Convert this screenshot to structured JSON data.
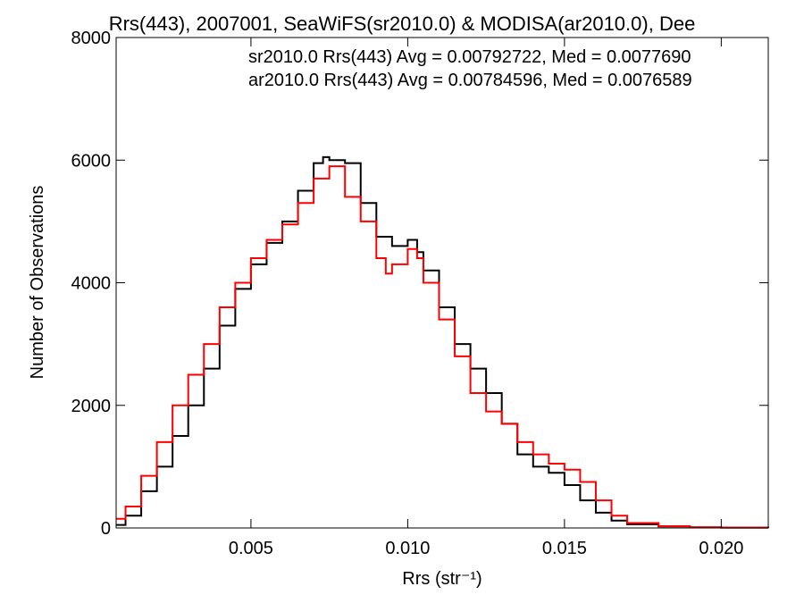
{
  "chart_data": {
    "type": "line",
    "title": "Rrs(443), 2007001, SeaWiFS(sr2010.0) & MODISA(ar2010.0), Dee",
    "xlabel": "Rrs (str⁻¹)",
    "ylabel": "Number of Observations",
    "xlim": [
      0.0007,
      0.0215
    ],
    "ylim": [
      0,
      8000
    ],
    "x_ticks": [
      0.005,
      0.01,
      0.015,
      0.02
    ],
    "x_tick_labels": [
      "0.005",
      "0.010",
      "0.015",
      "0.020"
    ],
    "y_ticks": [
      0,
      2000,
      4000,
      6000,
      8000
    ],
    "y_tick_labels": [
      "0",
      "2000",
      "4000",
      "6000",
      "8000"
    ],
    "grid": false,
    "legend_position": "top-right",
    "series": [
      {
        "name": "sr2010.0",
        "color": "#000000",
        "annotation": "sr2010.0 Rrs(443) Avg = 0.00792722, Med = 0.0077690",
        "x": [
          0.0007,
          0.001,
          0.0015,
          0.002,
          0.0025,
          0.003,
          0.0035,
          0.004,
          0.0045,
          0.005,
          0.0055,
          0.006,
          0.0065,
          0.007,
          0.0073,
          0.0075,
          0.008,
          0.0085,
          0.009,
          0.0095,
          0.01,
          0.0103,
          0.0105,
          0.011,
          0.0115,
          0.012,
          0.0125,
          0.013,
          0.0135,
          0.014,
          0.0145,
          0.015,
          0.0155,
          0.016,
          0.0165,
          0.017,
          0.018,
          0.019,
          0.02,
          0.0215
        ],
        "y": [
          50,
          200,
          600,
          1000,
          1500,
          2000,
          2600,
          3300,
          3900,
          4300,
          4650,
          5000,
          5500,
          5950,
          6050,
          6000,
          5950,
          5300,
          4750,
          4600,
          4700,
          4500,
          4200,
          3600,
          3000,
          2600,
          2200,
          1700,
          1200,
          1000,
          900,
          700,
          450,
          250,
          120,
          60,
          25,
          10,
          5,
          0
        ]
      },
      {
        "name": "ar2010.0",
        "color": "#ff0000",
        "annotation": "ar2010.0 Rrs(443) Avg = 0.00784596, Med = 0.0076589",
        "x": [
          0.0007,
          0.001,
          0.0015,
          0.002,
          0.0025,
          0.003,
          0.0035,
          0.004,
          0.0045,
          0.005,
          0.0055,
          0.006,
          0.0065,
          0.007,
          0.0075,
          0.008,
          0.0085,
          0.009,
          0.0093,
          0.0095,
          0.01,
          0.0103,
          0.0105,
          0.011,
          0.0115,
          0.012,
          0.0125,
          0.013,
          0.0135,
          0.014,
          0.0145,
          0.015,
          0.0155,
          0.016,
          0.0165,
          0.017,
          0.018,
          0.019,
          0.02,
          0.0215
        ],
        "y": [
          150,
          350,
          850,
          1400,
          2000,
          2500,
          3000,
          3600,
          4000,
          4400,
          4700,
          4950,
          5300,
          5700,
          5900,
          5400,
          5000,
          4400,
          4150,
          4300,
          4550,
          4400,
          4000,
          3400,
          2800,
          2200,
          1900,
          1700,
          1400,
          1200,
          1050,
          950,
          750,
          450,
          200,
          80,
          30,
          10,
          5,
          0
        ]
      }
    ]
  }
}
